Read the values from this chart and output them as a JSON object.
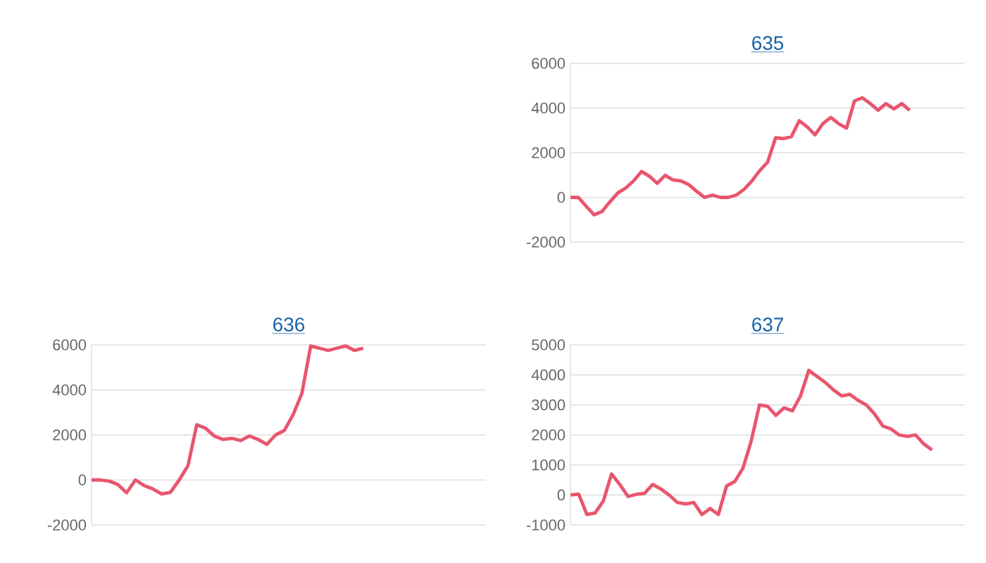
{
  "chart_data": [
    {
      "type": "line",
      "title": "635",
      "categories": [
        null,
        null,
        null,
        null,
        null,
        null,
        null,
        null,
        null,
        null,
        null,
        null,
        null,
        null,
        null,
        null,
        null,
        null,
        null,
        null,
        null,
        null,
        null,
        null,
        null,
        null,
        null,
        null,
        null,
        null,
        null,
        null,
        null,
        null,
        null,
        null,
        null,
        null,
        null,
        null,
        null,
        null,
        null,
        null,
        null,
        null,
        null,
        null,
        null,
        null,
        null
      ],
      "values": [
        0,
        0,
        -400,
        -780,
        -630,
        -200,
        200,
        420,
        740,
        1160,
        950,
        630,
        990,
        780,
        740,
        570,
        270,
        0,
        100,
        0,
        0,
        100,
        360,
        740,
        1200,
        1580,
        2670,
        2630,
        2720,
        3430,
        3160,
        2800,
        3300,
        3580,
        3300,
        3100,
        4320,
        4460,
        4200,
        3900,
        4200,
        3960,
        4200,
        3900,
        null,
        null,
        null,
        null,
        null,
        null,
        null
      ],
      "color": "#e8566e",
      "ylim": [
        -2000,
        6000
      ],
      "yticks": [
        -2000,
        0,
        2000,
        4000,
        6000
      ],
      "grid": "y",
      "tick_labels": "y",
      "marker": "none"
    },
    {
      "type": "line",
      "title": "636",
      "categories": [
        null,
        null,
        null,
        null,
        null,
        null,
        null,
        null,
        null,
        null,
        null,
        null,
        null,
        null,
        null,
        null,
        null,
        null,
        null,
        null,
        null,
        null,
        null,
        null,
        null,
        null,
        null,
        null,
        null,
        null,
        null,
        null,
        null,
        null,
        null,
        null,
        null,
        null,
        null,
        null,
        null,
        null,
        null,
        null,
        null,
        null
      ],
      "values": [
        0,
        0,
        -50,
        -200,
        -570,
        0,
        -250,
        -400,
        -620,
        -550,
        0,
        630,
        2450,
        2300,
        1950,
        1800,
        1850,
        1750,
        1950,
        1800,
        1580,
        2000,
        2200,
        2900,
        3850,
        5950,
        5850,
        5750,
        5850,
        5950,
        5750,
        5850,
        null,
        null,
        null,
        null,
        null,
        null,
        null,
        null,
        null,
        null,
        null,
        null,
        null,
        null
      ],
      "color": "#e8566e",
      "ylim": [
        -2000,
        6000
      ],
      "yticks": [
        -2000,
        0,
        2000,
        4000,
        6000
      ],
      "grid": "y",
      "tick_labels": "y",
      "marker": "none"
    },
    {
      "type": "line",
      "title": "637",
      "categories": [
        null,
        null,
        null,
        null,
        null,
        null,
        null,
        null,
        null,
        null,
        null,
        null,
        null,
        null,
        null,
        null,
        null,
        null,
        null,
        null,
        null,
        null,
        null,
        null,
        null,
        null,
        null,
        null,
        null,
        null,
        null,
        null,
        null,
        null,
        null,
        null,
        null,
        null,
        null,
        null,
        null,
        null,
        null,
        null,
        null,
        null,
        null,
        null,
        null
      ],
      "values": [
        0,
        30,
        -650,
        -600,
        -200,
        700,
        350,
        -50,
        20,
        50,
        350,
        200,
        0,
        -250,
        -300,
        -250,
        -650,
        -450,
        -650,
        300,
        450,
        900,
        1800,
        3000,
        2950,
        2650,
        2900,
        2800,
        3300,
        4150,
        3950,
        3750,
        3500,
        3300,
        3350,
        3150,
        3000,
        2700,
        2300,
        2200,
        2000,
        1950,
        2000,
        1700,
        1500,
        null,
        null,
        null,
        null
      ],
      "color": "#e8566e",
      "ylim": [
        -1000,
        5000
      ],
      "yticks": [
        -1000,
        0,
        1000,
        2000,
        3000,
        4000,
        5000
      ],
      "grid": "y",
      "tick_labels": "y",
      "marker": "none"
    }
  ]
}
